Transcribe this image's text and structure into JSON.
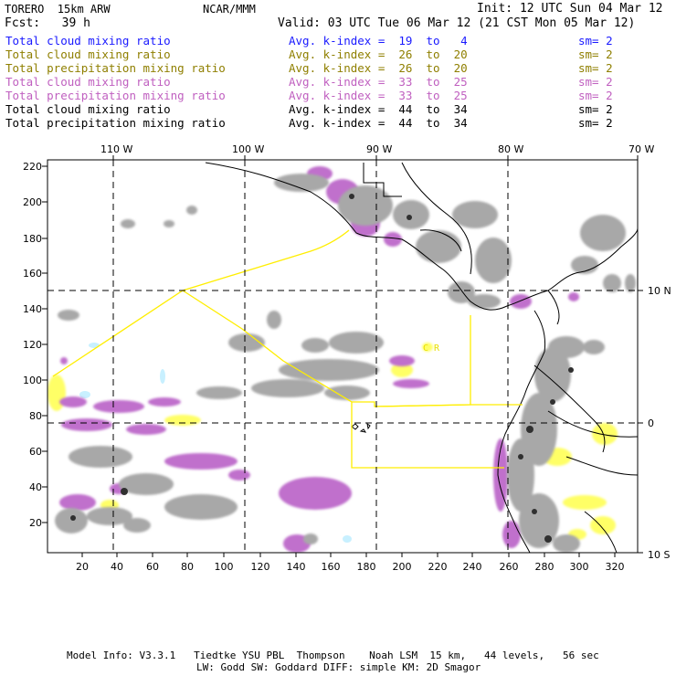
{
  "header": {
    "model": "TORERO  15km ARW",
    "org": "NCAR/MMM",
    "init": "Init: 12 UTC Sun 04 Mar 12",
    "fcst": "Fcst:   39 h",
    "valid": "Valid: 03 UTC Tue 06 Mar 12 (21 CST Mon 05 Mar 12)"
  },
  "legend": [
    {
      "field": "Total cloud mixing ratio",
      "range": "Avg. k-index =  19  to   4",
      "sm": "sm= 2",
      "color": "#1a1aff"
    },
    {
      "field": "Total cloud mixing ratio",
      "range": "Avg. k-index =  26  to  20",
      "sm": "sm= 2",
      "color": "#8f7f00"
    },
    {
      "field": "Total precipitation mixing ratio",
      "range": "Avg. k-index =  26  to  20",
      "sm": "sm= 2",
      "color": "#8f7f00"
    },
    {
      "field": "Total cloud mixing ratio",
      "range": "Avg. k-index =  33  to  25",
      "sm": "sm= 2",
      "color": "#c060c0"
    },
    {
      "field": "Total precipitation mixing ratio",
      "range": "Avg. k-index =  33  to  25",
      "sm": "sm= 2",
      "color": "#c060c0"
    },
    {
      "field": "Total cloud mixing ratio",
      "range": "Avg. k-index =  44  to  34",
      "sm": "sm= 2",
      "color": "#000000"
    },
    {
      "field": "Total precipitation mixing ratio",
      "range": "Avg. k-index =  44  to  34",
      "sm": "sm= 2",
      "color": "#000000"
    }
  ],
  "axes": {
    "top_labels": [
      "110 W",
      "100 W",
      "90 W",
      "80 W",
      "70 W"
    ],
    "left_labels": [
      "220",
      "200",
      "180",
      "160",
      "140",
      "120",
      "100",
      "80",
      "60",
      "40",
      "20"
    ],
    "bottom_labels": [
      "20",
      "40",
      "60",
      "80",
      "100",
      "120",
      "140",
      "160",
      "180",
      "200",
      "220",
      "240",
      "260",
      "280",
      "300",
      "320"
    ],
    "right_labels": [
      "10 N",
      "0",
      "10 S"
    ]
  },
  "map_labels": {
    "region_text": "C R"
  },
  "colors": {
    "grey_cloud": "#a0a0a0",
    "purple": "#c070cc",
    "yellow": "#ffff66",
    "cyan": "#c8f0ff",
    "box_line": "#ffee00"
  },
  "footer": {
    "line1": "Model Info: V3.3.1   Tiedtke YSU PBL  Thompson    Noah LSM  15 km,   44 levels,   56 sec",
    "line2": "LW: Godd SW: Goddard DIFF: simple KM: 2D Smagor"
  }
}
